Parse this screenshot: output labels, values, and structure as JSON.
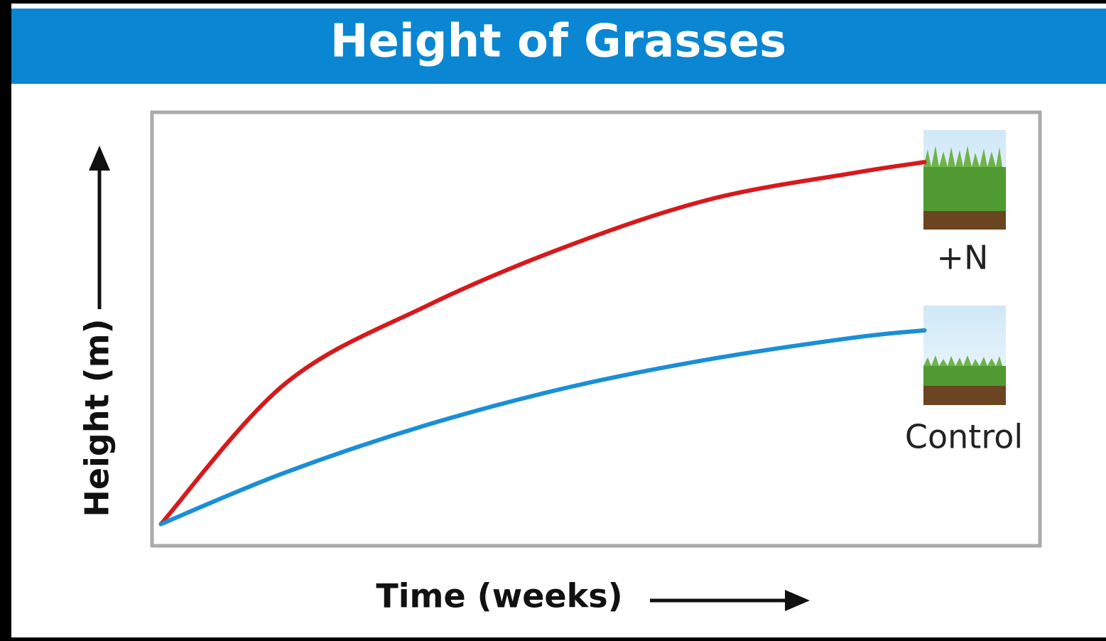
{
  "chart_data": {
    "type": "line",
    "title": "Height of Grasses",
    "x_label": "Time (weeks)",
    "y_label": "Height (m)",
    "x": [
      1,
      15,
      31,
      47,
      63,
      79,
      87
    ],
    "xlim": [
      0,
      100
    ],
    "ylim": [
      0,
      100
    ],
    "series": [
      {
        "name": "+N",
        "color": "#d7191c",
        "values": [
          5,
          37.4,
          55.4,
          69.3,
          80,
          86,
          88.5
        ]
      },
      {
        "name": "Control",
        "color": "#1a8fd6",
        "values": [
          5,
          16.9,
          27.9,
          36.6,
          43.1,
          48,
          49.7
        ]
      }
    ]
  }
}
